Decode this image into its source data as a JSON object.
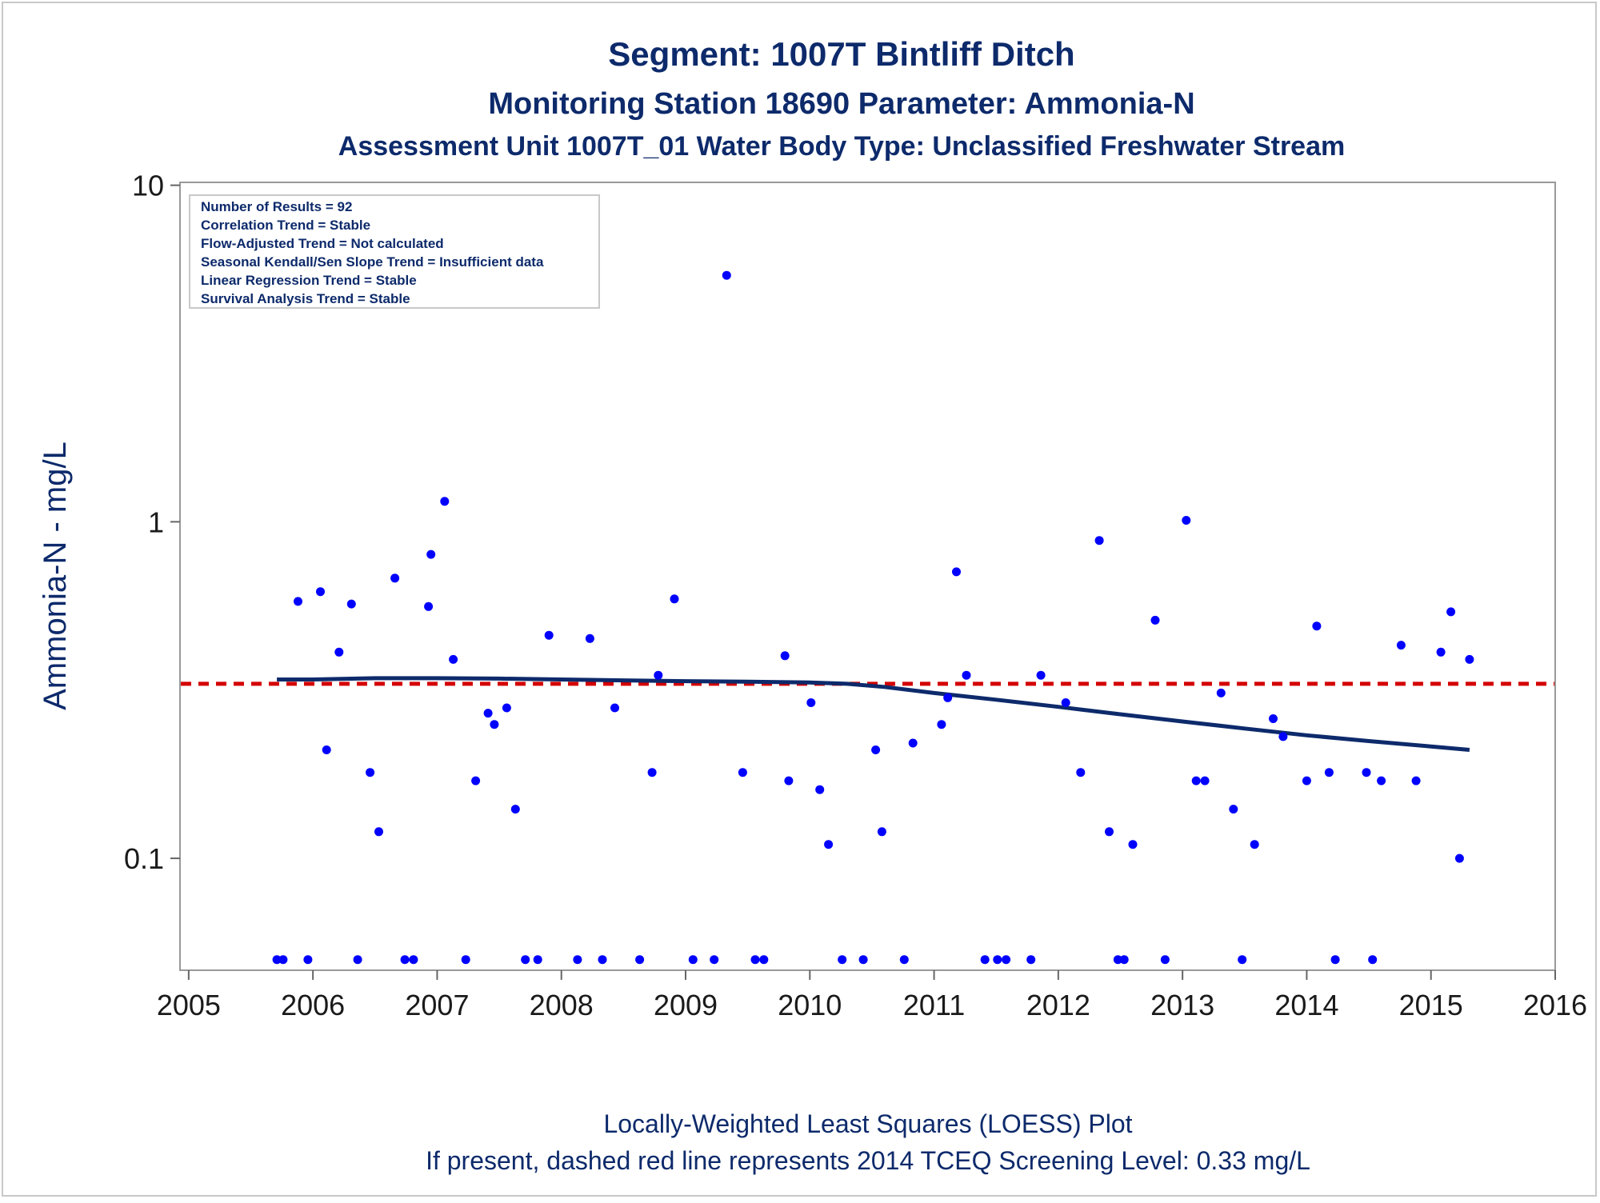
{
  "chart_data": {
    "type": "scatter",
    "title": "Segment: 1007T  Bintliff Ditch",
    "subtitle": "Monitoring Station 18690 Parameter: Ammonia-N",
    "subtitle2": "Assessment Unit 1007T_01   Water Body Type: Unclassified Freshwater Stream",
    "ylabel": "Ammonia-N - mg/L",
    "footnotes": [
      "Locally-Weighted Least Squares (LOESS) Plot",
      "If present, dashed red line represents 2014 TCEQ Screening Level: 0.33 mg/L"
    ],
    "stats": [
      "Number of Results = 92",
      "Correlation Trend = Stable",
      "Flow-Adjusted Trend = Not calculated",
      "Seasonal Kendall/Sen Slope Trend = Insufficient data",
      "Linear Regression Trend = Stable",
      "Survival Analysis Trend = Stable"
    ],
    "x_ticks": [
      2005,
      2006,
      2007,
      2008,
      2009,
      2010,
      2011,
      2012,
      2013,
      2014,
      2015,
      2016
    ],
    "y_ticks": [
      {
        "value": 0.1,
        "label": "0.1"
      },
      {
        "value": 1,
        "label": "1"
      },
      {
        "value": 10,
        "label": "10"
      }
    ],
    "xlim": [
      2004.93,
      2016.0
    ],
    "ylim": [
      0.0465,
      10.2
    ],
    "y_scale": "log",
    "grid": false,
    "legend": "none",
    "colors": {
      "points": "#0000ff",
      "loess": "#0d2a6b",
      "screening": "#d40000",
      "text": "#0d2a6b"
    },
    "screening_level": 0.33,
    "points": [
      [
        2005.71,
        0.05
      ],
      [
        2005.76,
        0.05
      ],
      [
        2005.88,
        0.58
      ],
      [
        2005.96,
        0.05
      ],
      [
        2006.06,
        0.62
      ],
      [
        2006.11,
        0.21
      ],
      [
        2006.21,
        0.41
      ],
      [
        2006.31,
        0.57
      ],
      [
        2006.36,
        0.05
      ],
      [
        2006.46,
        0.18
      ],
      [
        2006.53,
        0.12
      ],
      [
        2006.66,
        0.68
      ],
      [
        2006.74,
        0.05
      ],
      [
        2006.81,
        0.05
      ],
      [
        2006.93,
        0.56
      ],
      [
        2006.95,
        0.8
      ],
      [
        2007.06,
        1.15
      ],
      [
        2007.13,
        0.39
      ],
      [
        2007.23,
        0.05
      ],
      [
        2007.31,
        0.17
      ],
      [
        2007.41,
        0.27
      ],
      [
        2007.46,
        0.25
      ],
      [
        2007.56,
        0.28
      ],
      [
        2007.63,
        0.14
      ],
      [
        2007.71,
        0.05
      ],
      [
        2007.81,
        0.05
      ],
      [
        2007.9,
        0.46
      ],
      [
        2008.13,
        0.05
      ],
      [
        2008.23,
        0.45
      ],
      [
        2008.33,
        0.05
      ],
      [
        2008.43,
        0.28
      ],
      [
        2008.63,
        0.05
      ],
      [
        2008.73,
        0.18
      ],
      [
        2008.78,
        0.35
      ],
      [
        2008.91,
        0.59
      ],
      [
        2009.06,
        0.05
      ],
      [
        2009.23,
        0.05
      ],
      [
        2009.33,
        5.4
      ],
      [
        2009.46,
        0.18
      ],
      [
        2009.56,
        0.05
      ],
      [
        2009.63,
        0.05
      ],
      [
        2009.8,
        0.4
      ],
      [
        2009.83,
        0.17
      ],
      [
        2010.01,
        0.29
      ],
      [
        2010.08,
        0.16
      ],
      [
        2010.15,
        0.11
      ],
      [
        2010.26,
        0.05
      ],
      [
        2010.43,
        0.05
      ],
      [
        2010.53,
        0.21
      ],
      [
        2010.58,
        0.12
      ],
      [
        2010.76,
        0.05
      ],
      [
        2010.83,
        0.22
      ],
      [
        2011.06,
        0.25
      ],
      [
        2011.11,
        0.3
      ],
      [
        2011.18,
        0.71
      ],
      [
        2011.26,
        0.35
      ],
      [
        2011.41,
        0.05
      ],
      [
        2011.51,
        0.05
      ],
      [
        2011.58,
        0.05
      ],
      [
        2011.78,
        0.05
      ],
      [
        2011.86,
        0.35
      ],
      [
        2012.06,
        0.29
      ],
      [
        2012.18,
        0.18
      ],
      [
        2012.33,
        0.88
      ],
      [
        2012.41,
        0.12
      ],
      [
        2012.48,
        0.05
      ],
      [
        2012.53,
        0.05
      ],
      [
        2012.6,
        0.11
      ],
      [
        2012.78,
        0.51
      ],
      [
        2012.86,
        0.05
      ],
      [
        2013.03,
        1.01
      ],
      [
        2013.11,
        0.17
      ],
      [
        2013.18,
        0.17
      ],
      [
        2013.31,
        0.31
      ],
      [
        2013.41,
        0.14
      ],
      [
        2013.48,
        0.05
      ],
      [
        2013.58,
        0.11
      ],
      [
        2013.73,
        0.26
      ],
      [
        2013.81,
        0.23
      ],
      [
        2014.0,
        0.17
      ],
      [
        2014.08,
        0.49
      ],
      [
        2014.18,
        0.18
      ],
      [
        2014.23,
        0.05
      ],
      [
        2014.48,
        0.18
      ],
      [
        2014.53,
        0.05
      ],
      [
        2014.6,
        0.17
      ],
      [
        2014.76,
        0.43
      ],
      [
        2014.88,
        0.17
      ],
      [
        2015.08,
        0.41
      ],
      [
        2015.16,
        0.54
      ],
      [
        2015.23,
        0.1
      ],
      [
        2015.31,
        0.39
      ]
    ],
    "loess": [
      [
        2005.71,
        0.34
      ],
      [
        2006.0,
        0.34
      ],
      [
        2006.5,
        0.343
      ],
      [
        2007.0,
        0.343
      ],
      [
        2007.5,
        0.342
      ],
      [
        2008.0,
        0.34
      ],
      [
        2008.5,
        0.338
      ],
      [
        2009.0,
        0.336
      ],
      [
        2009.5,
        0.335
      ],
      [
        2010.0,
        0.333
      ],
      [
        2010.3,
        0.33
      ],
      [
        2010.6,
        0.323
      ],
      [
        2011.0,
        0.31
      ],
      [
        2011.5,
        0.296
      ],
      [
        2012.0,
        0.282
      ],
      [
        2012.5,
        0.268
      ],
      [
        2013.0,
        0.255
      ],
      [
        2013.5,
        0.243
      ],
      [
        2014.0,
        0.232
      ],
      [
        2014.5,
        0.223
      ],
      [
        2015.0,
        0.215
      ],
      [
        2015.31,
        0.21
      ]
    ]
  }
}
